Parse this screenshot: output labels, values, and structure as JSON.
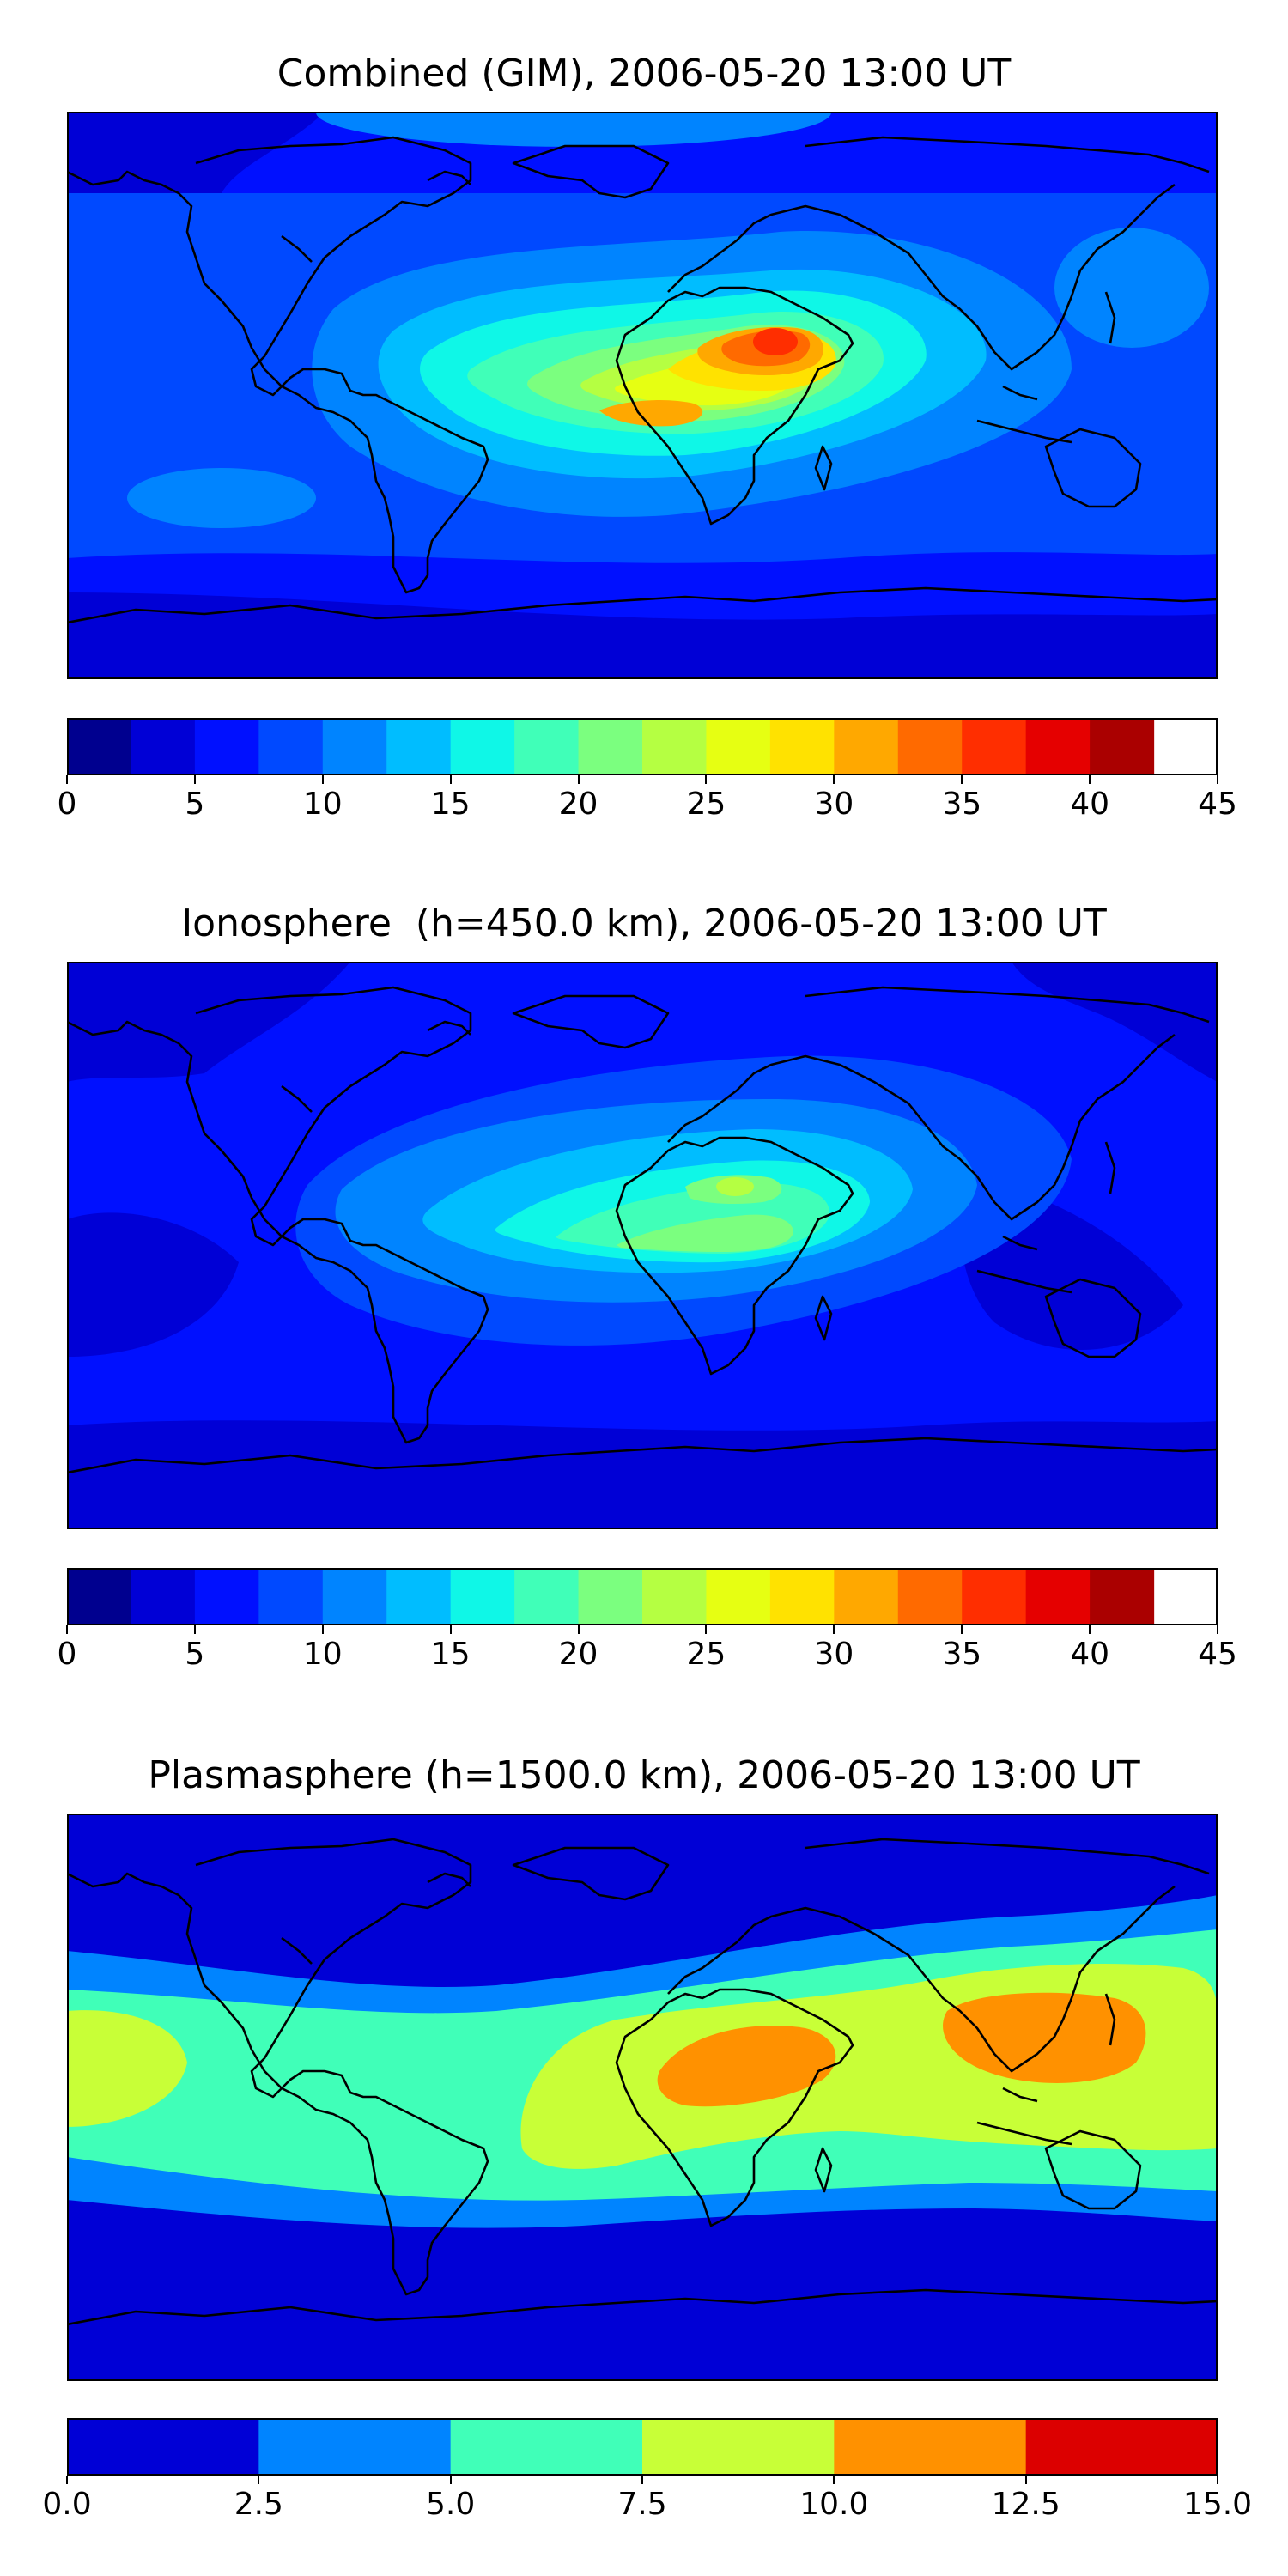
{
  "panels": [
    {
      "title": "Combined (GIM), 2006-05-20 13:00 UT",
      "colorbar": {
        "ticks": [
          "0",
          "5",
          "10",
          "15",
          "20",
          "25",
          "30",
          "35",
          "40",
          "45"
        ],
        "levels": [
          0,
          2.5,
          5,
          7.5,
          10,
          12.5,
          15,
          17.5,
          20,
          22.5,
          25,
          27.5,
          30,
          32.5,
          35,
          37.5,
          40,
          42.5,
          45
        ],
        "colors": [
          "#00008f",
          "#0000d6",
          "#0010ff",
          "#0049ff",
          "#0084ff",
          "#00bdff",
          "#0ff7e7",
          "#40ffb8",
          "#7bff7f",
          "#b5ff42",
          "#e6ff12",
          "#ffe200",
          "#ffa800",
          "#ff6a00",
          "#ff2e00",
          "#e50000",
          "#aa0000"
        ]
      }
    },
    {
      "title": "Ionosphere  (h=450.0 km), 2006-05-20 13:00 UT",
      "colorbar": {
        "ticks": [
          "0",
          "5",
          "10",
          "15",
          "20",
          "25",
          "30",
          "35",
          "40",
          "45"
        ],
        "levels": [
          0,
          2.5,
          5,
          7.5,
          10,
          12.5,
          15,
          17.5,
          20,
          22.5,
          25,
          27.5,
          30,
          32.5,
          35,
          37.5,
          40,
          42.5,
          45
        ],
        "colors": [
          "#00008f",
          "#0000d6",
          "#0010ff",
          "#0049ff",
          "#0084ff",
          "#00bdff",
          "#0ff7e7",
          "#40ffb8",
          "#7bff7f",
          "#b5ff42",
          "#e6ff12",
          "#ffe200",
          "#ffa800",
          "#ff6a00",
          "#ff2e00",
          "#e50000",
          "#aa0000"
        ]
      }
    },
    {
      "title": "Plasmasphere (h=1500.0 km), 2006-05-20 13:00 UT",
      "colorbar": {
        "ticks": [
          "0.0",
          "2.5",
          "5.0",
          "7.5",
          "10.0",
          "12.5",
          "15.0"
        ],
        "levels": [
          0,
          2.5,
          5,
          7.5,
          10,
          12.5,
          15
        ],
        "colors": [
          "#0000d6",
          "#0084ff",
          "#40ffb8",
          "#c8ff37",
          "#ff9100",
          "#dc0000"
        ]
      }
    }
  ]
}
